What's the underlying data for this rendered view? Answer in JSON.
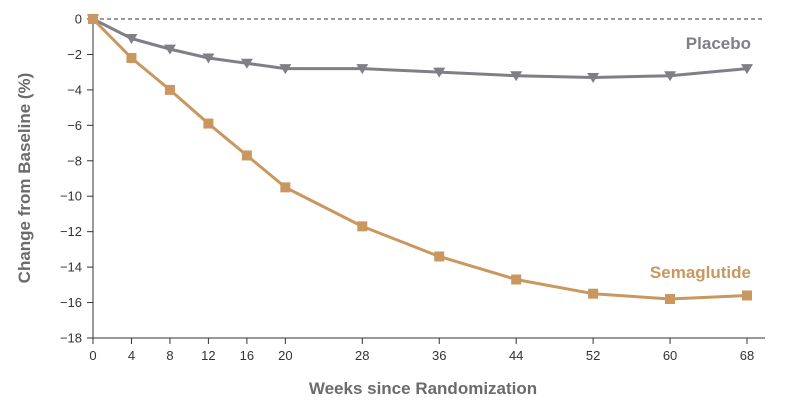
{
  "chart_data": {
    "type": "line",
    "title": "",
    "xlabel": "Weeks since Randomization",
    "ylabel": "Change from Baseline (%)",
    "xlim": [
      0,
      68
    ],
    "ylim": [
      -18,
      0
    ],
    "x_ticks": [
      0,
      4,
      8,
      12,
      16,
      20,
      28,
      36,
      44,
      52,
      60,
      68
    ],
    "y_ticks": [
      0,
      -2,
      -4,
      -6,
      -8,
      -10,
      -12,
      -14,
      -16,
      -18
    ],
    "y_tick_labels": [
      "0",
      "−2",
      "−4",
      "−6",
      "−8",
      "−10",
      "−12",
      "−14",
      "−16",
      "−18"
    ],
    "reference_line": {
      "y": 0,
      "style": "dashed"
    },
    "grid": false,
    "series": [
      {
        "name": "Placebo",
        "marker": "triangle-down",
        "color": "#7f7f86",
        "x": [
          0,
          4,
          8,
          12,
          16,
          20,
          28,
          36,
          44,
          52,
          60,
          68
        ],
        "y": [
          0,
          -1.1,
          -1.7,
          -2.2,
          -2.5,
          -2.8,
          -2.8,
          -3.0,
          -3.2,
          -3.3,
          -3.2,
          -2.8
        ]
      },
      {
        "name": "Semaglutide",
        "marker": "square",
        "color": "#c9975f",
        "x": [
          0,
          4,
          8,
          12,
          16,
          20,
          28,
          36,
          44,
          52,
          60,
          68
        ],
        "y": [
          0,
          -2.2,
          -4.0,
          -5.9,
          -7.7,
          -9.5,
          -11.7,
          -13.4,
          -14.7,
          -15.5,
          -15.8,
          -15.6
        ]
      }
    ]
  }
}
